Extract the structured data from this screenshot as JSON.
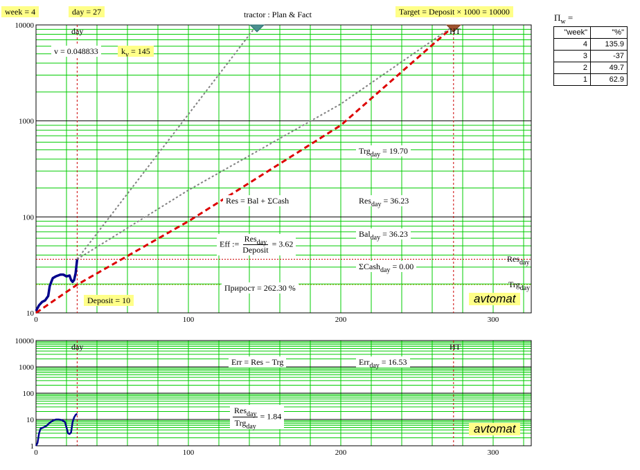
{
  "header": {
    "week_label": "week = 4",
    "day_label": "day = 27",
    "title": "tractor :  Plan & Fact",
    "target_label": "Target = Deposit × 1000 = 10000"
  },
  "main_annotations": {
    "day_marker": "day",
    "ht_marker": "HT",
    "v_text": "v = 0.048833",
    "kv_main": "k",
    "kv_sub": "v",
    "kv_value": " = 145",
    "trg_main": "Trg",
    "trg_sub": "day",
    "trg_value": " = 19.70",
    "res_formula": "Res = Bal + ΣCash",
    "res_main": "Res",
    "res_sub": "day",
    "res_value": " = 36.23",
    "bal_main": "Bal",
    "bal_sub": "day",
    "bal_value": " = 36.23",
    "eff_prefix": "Eff  :=",
    "eff_num_main": "Res",
    "eff_num_sub": "day",
    "eff_den": "Deposit",
    "eff_value": " = 3.62",
    "cash_main": "ΣCash",
    "cash_sub": "day",
    "cash_value": " = 0.00",
    "growth": "Прирост = 262.30  %",
    "deposit": "Deposit = 10",
    "res_line_main": "Res",
    "res_line_sub": "day",
    "trg_line_main": "Trg",
    "trg_line_sub": "day",
    "badge": "avtomat"
  },
  "lower_annotations": {
    "day_marker": "day",
    "ht_marker": "HT",
    "err_formula": "Err = Res − Trg",
    "err_main": "Err",
    "err_sub": "day",
    "err_value": " = 16.53",
    "ratio_num_main": "Res",
    "ratio_num_sub": "day",
    "ratio_den_main": "Trg",
    "ratio_den_sub": "day",
    "ratio_value": " = 1.84",
    "badge": "avtomat"
  },
  "side_table": {
    "title_main": "П",
    "title_sub": "w",
    "title_suffix": " =",
    "headers": [
      "\"week\"",
      "\"%\""
    ],
    "rows": [
      [
        "4",
        "135.9"
      ],
      [
        "3",
        "-37"
      ],
      [
        "2",
        "49.7"
      ],
      [
        "1",
        "62.9"
      ]
    ]
  },
  "colors": {
    "grid_minor": "#00cc00",
    "grid_major": "#000000",
    "fact": "#00008b",
    "plan": "#dd0000",
    "forecast": "#808080",
    "marker": "#cc0000",
    "highlight": "#ffff88"
  },
  "chart_data": [
    {
      "type": "line",
      "title": "tractor :  Plan & Fact",
      "yscale": "log",
      "xlim": [
        0,
        325
      ],
      "ylim": [
        10,
        10000
      ],
      "x_ticks": [
        "0",
        "100",
        "200",
        "300"
      ],
      "y_ticks": [
        "10",
        "100",
        "1000",
        "10000"
      ],
      "grid": true,
      "series": [
        {
          "name": "Res",
          "style": "solid",
          "color": "#00008b",
          "points": [
            [
              0,
              10.5
            ],
            [
              2,
              12
            ],
            [
              4,
              13
            ],
            [
              6,
              13.5
            ],
            [
              8,
              15
            ],
            [
              9,
              19
            ],
            [
              10,
              21
            ],
            [
              11,
              23
            ],
            [
              13,
              24
            ],
            [
              16,
              25
            ],
            [
              18,
              25
            ],
            [
              20,
              24
            ],
            [
              22,
              24.5
            ],
            [
              23,
              22
            ],
            [
              24,
              21
            ],
            [
              25,
              22
            ],
            [
              26,
              26
            ],
            [
              27,
              36.23
            ]
          ]
        },
        {
          "name": "Trg",
          "style": "dashed",
          "color": "#dd0000",
          "points": [
            [
              0,
              10
            ],
            [
              27,
              19.7
            ],
            [
              100,
              90
            ],
            [
              200,
              900
            ],
            [
              275,
              10000
            ]
          ]
        },
        {
          "style": "dotted",
          "color": "#808080",
          "points": [
            [
              27,
              36.23
            ],
            [
              145,
              10000
            ]
          ]
        },
        {
          "style": "dotted",
          "color": "#808080",
          "points": [
            [
              27,
              36.23
            ],
            [
              100,
              190
            ],
            [
              200,
              1500
            ],
            [
              275,
              10000
            ]
          ]
        }
      ],
      "reference_lines": {
        "vertical": [
          27,
          274
        ],
        "horizontal": [
          36.23,
          19.7
        ]
      }
    },
    {
      "type": "line",
      "yscale": "log",
      "xlim": [
        0,
        325
      ],
      "ylim": [
        1,
        10000
      ],
      "x_ticks": [
        "0",
        "100",
        "200",
        "300"
      ],
      "y_ticks": [
        "1",
        "10",
        "100",
        "1000",
        "10000"
      ],
      "grid": true,
      "series": [
        {
          "name": "Err",
          "style": "solid",
          "color": "#00008b",
          "points": [
            [
              0,
              1
            ],
            [
              1,
              1.3
            ],
            [
              2,
              3
            ],
            [
              3,
              4.5
            ],
            [
              5,
              5
            ],
            [
              7,
              5.8
            ],
            [
              9,
              7.5
            ],
            [
              11,
              9
            ],
            [
              13,
              10
            ],
            [
              15,
              10
            ],
            [
              17,
              9.5
            ],
            [
              19,
              8
            ],
            [
              20,
              5
            ],
            [
              21,
              3
            ],
            [
              22,
              2.8
            ],
            [
              23,
              3.2
            ],
            [
              24,
              8
            ],
            [
              25,
              12
            ],
            [
              26,
              15
            ],
            [
              27,
              16.53
            ]
          ]
        }
      ],
      "reference_lines": {
        "vertical": [
          27,
          274
        ]
      }
    }
  ]
}
